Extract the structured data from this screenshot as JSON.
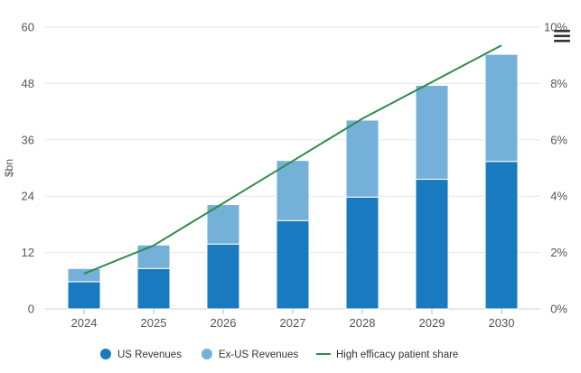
{
  "chart_data": {
    "type": "bar",
    "stacked": true,
    "categories": [
      "2024",
      "2025",
      "2026",
      "2027",
      "2028",
      "2029",
      "2030"
    ],
    "series": [
      {
        "name": "US Revenues",
        "kind": "bar",
        "axis": "left",
        "color": "#1a7abf",
        "values": [
          5.8,
          8.6,
          13.8,
          18.8,
          23.8,
          27.6,
          31.4
        ]
      },
      {
        "name": "Ex-US Revenues",
        "kind": "bar",
        "axis": "left",
        "color": "#74b0d8",
        "values": [
          2.8,
          5.0,
          8.4,
          12.8,
          16.4,
          20.0,
          22.8
        ]
      },
      {
        "name": "High efficacy patient share",
        "kind": "line",
        "axis": "right",
        "color": "#2e8b4a",
        "values": [
          1.25,
          2.25,
          3.75,
          5.25,
          6.75,
          8.05,
          9.35
        ]
      }
    ],
    "title": "",
    "xlabel": "",
    "ylabel": "$bn",
    "ylim": [
      0,
      60
    ],
    "yticks": [
      "0",
      "12",
      "24",
      "36",
      "48",
      "60"
    ],
    "y2lim": [
      0,
      10
    ],
    "y2ticks": [
      "0%",
      "2%",
      "4%",
      "6%",
      "8%",
      "10%"
    ],
    "grid": true,
    "legend": "bottom-center"
  },
  "menu": {
    "icon": "hamburger-menu-icon"
  }
}
